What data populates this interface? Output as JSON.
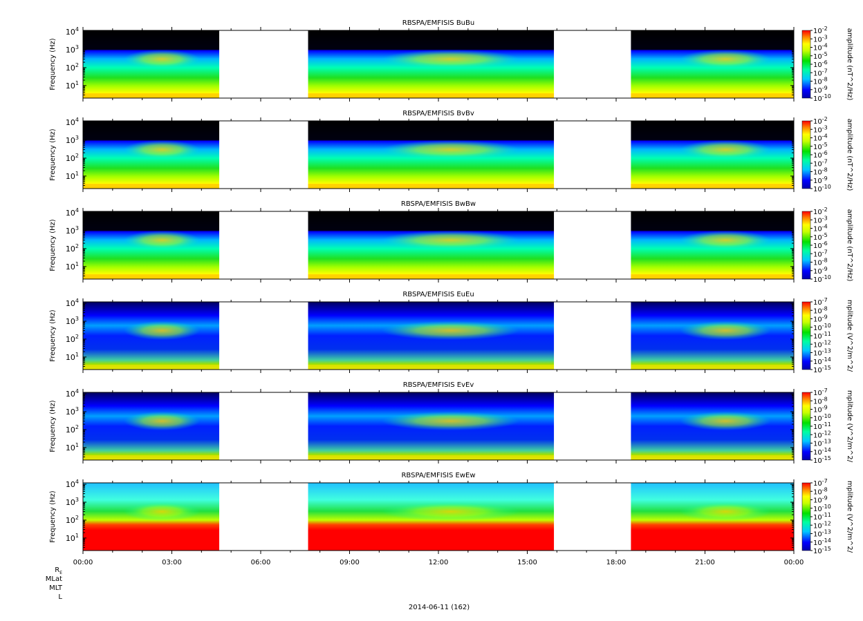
{
  "figure": {
    "date_label": "2014-06-11 (162)",
    "orbit_labels": [
      "R_E",
      "MLat",
      "MLT",
      "L"
    ]
  },
  "chart_data": [
    {
      "type": "heatmap",
      "title": "RBSPA/EMFISIS  BuBu",
      "ylabel": "Frequency (Hz)",
      "colorbar_label": "amplitude (nT^2/Hz)",
      "colorbar_exponents": [
        -2,
        -3,
        -4,
        -5,
        -6,
        -7,
        -8,
        -9,
        -10
      ],
      "ylim_hz": [
        2,
        12000
      ],
      "yticks": [
        "10^1",
        "10^2",
        "10^3",
        "10^4"
      ],
      "xticks": [
        "00:00",
        "03:00",
        "06:00",
        "09:00",
        "12:00",
        "15:00",
        "18:00",
        "21:00",
        "00:00"
      ],
      "data_gaps_hours": [
        [
          4.6,
          7.6
        ],
        [
          15.9,
          18.5
        ]
      ]
    },
    {
      "type": "heatmap",
      "title": "RBSPA/EMFISIS  BvBv",
      "ylabel": "Frequency (Hz)",
      "colorbar_label": "amplitude (nT^2/Hz)",
      "colorbar_exponents": [
        -2,
        -3,
        -4,
        -5,
        -6,
        -7,
        -8,
        -9,
        -10
      ],
      "ylim_hz": [
        2,
        12000
      ],
      "yticks": [
        "10^1",
        "10^2",
        "10^3",
        "10^4"
      ],
      "xticks": [
        "00:00",
        "03:00",
        "06:00",
        "09:00",
        "12:00",
        "15:00",
        "18:00",
        "21:00",
        "00:00"
      ],
      "data_gaps_hours": [
        [
          4.6,
          7.6
        ],
        [
          15.9,
          18.5
        ]
      ]
    },
    {
      "type": "heatmap",
      "title": "RBSPA/EMFISIS  BwBw",
      "ylabel": "Frequency (Hz)",
      "colorbar_label": "amplitude (nT^2/Hz)",
      "colorbar_exponents": [
        -2,
        -3,
        -4,
        -5,
        -6,
        -7,
        -8,
        -9,
        -10
      ],
      "ylim_hz": [
        2,
        12000
      ],
      "yticks": [
        "10^1",
        "10^2",
        "10^3",
        "10^4"
      ],
      "xticks": [
        "00:00",
        "03:00",
        "06:00",
        "09:00",
        "12:00",
        "15:00",
        "18:00",
        "21:00",
        "00:00"
      ],
      "data_gaps_hours": [
        [
          4.6,
          7.6
        ],
        [
          15.9,
          18.5
        ]
      ]
    },
    {
      "type": "heatmap",
      "title": "RBSPA/EMFISIS  EuEu",
      "ylabel": "Frequency (Hz)",
      "colorbar_label": "mplitude (V^2/m^2/",
      "colorbar_exponents": [
        -7,
        -8,
        -9,
        -10,
        -11,
        -12,
        -13,
        -14,
        -15
      ],
      "ylim_hz": [
        2,
        12000
      ],
      "yticks": [
        "10^1",
        "10^2",
        "10^3",
        "10^4"
      ],
      "xticks": [
        "00:00",
        "03:00",
        "06:00",
        "09:00",
        "12:00",
        "15:00",
        "18:00",
        "21:00",
        "00:00"
      ],
      "data_gaps_hours": [
        [
          4.6,
          7.6
        ],
        [
          15.9,
          18.5
        ]
      ]
    },
    {
      "type": "heatmap",
      "title": "RBSPA/EMFISIS  EvEv",
      "ylabel": "Frequency (Hz)",
      "colorbar_label": "mplitude (V^2/m^2/",
      "colorbar_exponents": [
        -7,
        -8,
        -9,
        -10,
        -11,
        -12,
        -13,
        -14,
        -15
      ],
      "ylim_hz": [
        2,
        12000
      ],
      "yticks": [
        "10^1",
        "10^2",
        "10^3",
        "10^4"
      ],
      "xticks": [
        "00:00",
        "03:00",
        "06:00",
        "09:00",
        "12:00",
        "15:00",
        "18:00",
        "21:00",
        "00:00"
      ],
      "data_gaps_hours": [
        [
          4.6,
          7.6
        ],
        [
          15.9,
          18.5
        ]
      ]
    },
    {
      "type": "heatmap",
      "title": "RBSPA/EMFISIS  EwEw",
      "ylabel": "Frequency (Hz)",
      "colorbar_label": "mplitude (V^2/m^2/",
      "colorbar_exponents": [
        -7,
        -8,
        -9,
        -10,
        -11,
        -12,
        -13,
        -14,
        -15
      ],
      "ylim_hz": [
        2,
        12000
      ],
      "yticks": [
        "10^1",
        "10^2",
        "10^3",
        "10^4"
      ],
      "xticks": [
        "00:00",
        "03:00",
        "06:00",
        "09:00",
        "12:00",
        "15:00",
        "18:00",
        "21:00",
        "00:00"
      ],
      "data_gaps_hours": [
        [
          4.6,
          7.6
        ],
        [
          15.9,
          18.5
        ]
      ]
    }
  ]
}
